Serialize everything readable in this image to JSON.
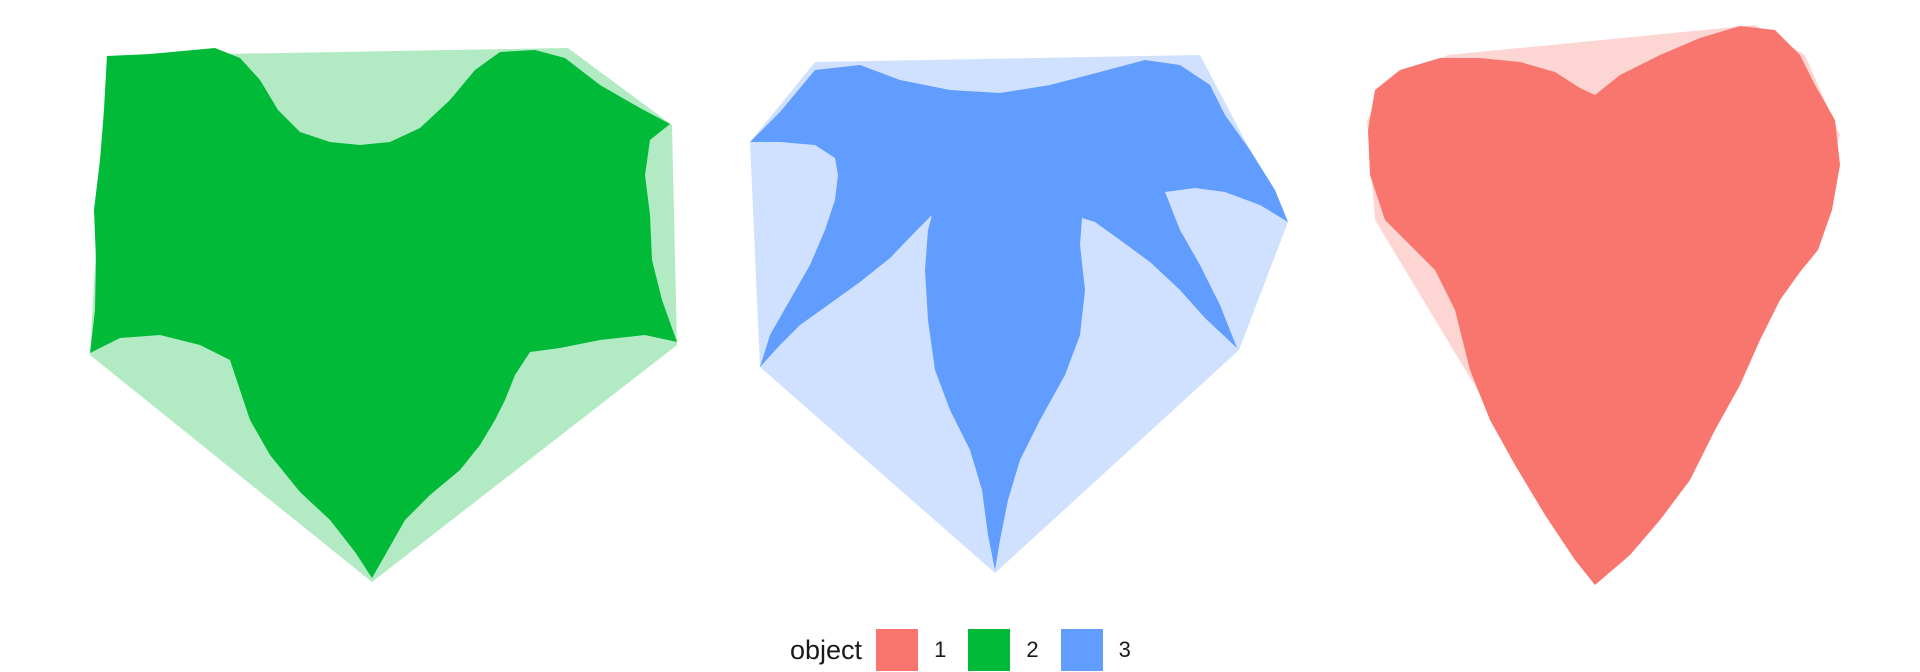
{
  "chart_data": {
    "type": "area",
    "title": "",
    "xlabel": "",
    "ylabel": "",
    "grid": false,
    "legend_position": "bottom",
    "legend": {
      "title": "object",
      "entries": [
        {
          "label": "1",
          "color": "#F8766D"
        },
        {
          "label": "2",
          "color": "#00BA38"
        },
        {
          "label": "3",
          "color": "#619CFF"
        }
      ]
    },
    "series": [
      {
        "object": "2",
        "color": "#00BA38",
        "shape": "bat-like silhouette with convex hull",
        "hull_opacity": 0.3
      },
      {
        "object": "3",
        "color": "#619CFF",
        "shape": "five-pointed leaf silhouette with convex hull",
        "hull_opacity": 0.3
      },
      {
        "object": "1",
        "color": "#F8766D",
        "shape": "heart silhouette with convex hull",
        "hull_opacity": 0.3
      }
    ]
  }
}
